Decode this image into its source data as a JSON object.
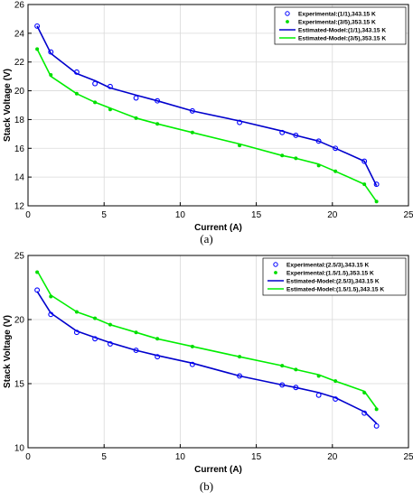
{
  "chart_data": [
    {
      "type": "line",
      "panel_label": "(a)",
      "xlabel": "Current (A)",
      "ylabel": "Stack Voltage (V)",
      "xlim": [
        0,
        25
      ],
      "ylim": [
        12,
        26
      ],
      "xticks": [
        0,
        5,
        10,
        15,
        20,
        25
      ],
      "yticks": [
        12,
        14,
        16,
        18,
        20,
        22,
        24,
        26
      ],
      "grid": true,
      "legend_position": "top-right",
      "series": [
        {
          "name": "Experimental:(1/1),343.15 K",
          "kind": "marker-circle",
          "color": "#0000ff",
          "x": [
            0.6,
            1.5,
            3.2,
            4.4,
            5.4,
            7.1,
            8.5,
            10.8,
            13.9,
            16.7,
            17.6,
            19.1,
            20.2,
            22.1,
            22.9
          ],
          "y": [
            24.5,
            22.7,
            21.3,
            20.5,
            20.3,
            19.5,
            19.3,
            18.6,
            17.8,
            17.1,
            16.9,
            16.5,
            16.0,
            15.1,
            13.5
          ]
        },
        {
          "name": "Experimental:(3/5),353.15 K",
          "kind": "marker-dot",
          "color": "#00dd00",
          "x": [
            0.6,
            1.5,
            3.2,
            4.4,
            5.4,
            7.1,
            8.5,
            10.8,
            13.9,
            16.7,
            17.6,
            19.1,
            20.2,
            22.1,
            22.9
          ],
          "y": [
            22.9,
            21.1,
            19.8,
            19.2,
            18.7,
            18.1,
            17.7,
            17.1,
            16.2,
            15.5,
            15.3,
            14.8,
            14.4,
            13.5,
            12.3
          ]
        },
        {
          "name": "Estimated-Model:(1/1),343.15 K",
          "kind": "line",
          "color": "#0000cc",
          "x": [
            0.6,
            1.5,
            3.2,
            4.4,
            5.4,
            7.1,
            8.5,
            10.8,
            13.9,
            16.7,
            17.6,
            19.1,
            20.2,
            22.1,
            22.9
          ],
          "y": [
            24.5,
            22.6,
            21.2,
            20.7,
            20.2,
            19.7,
            19.3,
            18.6,
            17.9,
            17.2,
            16.9,
            16.5,
            16.0,
            15.1,
            13.4
          ]
        },
        {
          "name": "Estimated-Model:(3/5),353.15 K",
          "kind": "line",
          "color": "#00ee00",
          "x": [
            0.6,
            1.5,
            3.2,
            4.4,
            5.4,
            7.1,
            8.5,
            10.8,
            13.9,
            16.7,
            17.6,
            19.1,
            20.2,
            22.1,
            22.9
          ],
          "y": [
            22.9,
            21.0,
            19.8,
            19.2,
            18.8,
            18.1,
            17.7,
            17.1,
            16.3,
            15.5,
            15.3,
            14.9,
            14.4,
            13.5,
            12.3
          ]
        }
      ]
    },
    {
      "type": "line",
      "panel_label": "(b)",
      "xlabel": "Current (A)",
      "ylabel": "Stack Voltage (V)",
      "xlim": [
        0,
        25
      ],
      "ylim": [
        10,
        25
      ],
      "xticks": [
        0,
        5,
        10,
        15,
        20,
        25
      ],
      "yticks": [
        10,
        15,
        20,
        25
      ],
      "grid": true,
      "legend_position": "top-right",
      "series": [
        {
          "name": "Experimental:(2.5/3),343.15 K",
          "kind": "marker-circle",
          "color": "#0000ff",
          "x": [
            0.6,
            1.5,
            3.2,
            4.4,
            5.4,
            7.1,
            8.5,
            10.8,
            13.9,
            16.7,
            17.6,
            19.1,
            20.2,
            22.1,
            22.9
          ],
          "y": [
            22.3,
            20.4,
            19.0,
            18.5,
            18.1,
            17.6,
            17.1,
            16.5,
            15.6,
            14.9,
            14.7,
            14.1,
            13.8,
            12.7,
            11.7
          ]
        },
        {
          "name": "Experimental:(1.5/1.5),353.15 K",
          "kind": "marker-dot",
          "color": "#00dd00",
          "x": [
            0.6,
            1.5,
            3.2,
            4.4,
            5.4,
            7.1,
            8.5,
            10.8,
            13.9,
            16.7,
            17.6,
            19.1,
            20.2,
            22.1,
            22.9
          ],
          "y": [
            23.7,
            21.8,
            20.6,
            20.1,
            19.6,
            19.0,
            18.5,
            17.9,
            17.1,
            16.4,
            16.1,
            15.6,
            15.2,
            14.3,
            13.0
          ]
        },
        {
          "name": "Estimated-Model:(2.5/3),343.15 K",
          "kind": "line",
          "color": "#0000cc",
          "x": [
            0.6,
            1.5,
            3.2,
            4.4,
            5.4,
            7.1,
            8.5,
            10.8,
            13.9,
            16.7,
            17.6,
            19.1,
            20.2,
            22.1,
            22.9
          ],
          "y": [
            22.2,
            20.5,
            19.1,
            18.6,
            18.2,
            17.6,
            17.2,
            16.6,
            15.6,
            14.9,
            14.7,
            14.3,
            13.9,
            12.8,
            11.9
          ]
        },
        {
          "name": "Estimated-Model:(1.5/1.5),343.15 K",
          "kind": "line",
          "color": "#00ee00",
          "x": [
            0.6,
            1.5,
            3.2,
            4.4,
            5.4,
            7.1,
            8.5,
            10.8,
            13.9,
            16.7,
            17.6,
            19.1,
            20.2,
            22.1,
            22.9
          ],
          "y": [
            23.8,
            21.9,
            20.6,
            20.1,
            19.6,
            19.0,
            18.5,
            17.9,
            17.1,
            16.4,
            16.1,
            15.7,
            15.2,
            14.4,
            13.1
          ]
        }
      ]
    }
  ]
}
